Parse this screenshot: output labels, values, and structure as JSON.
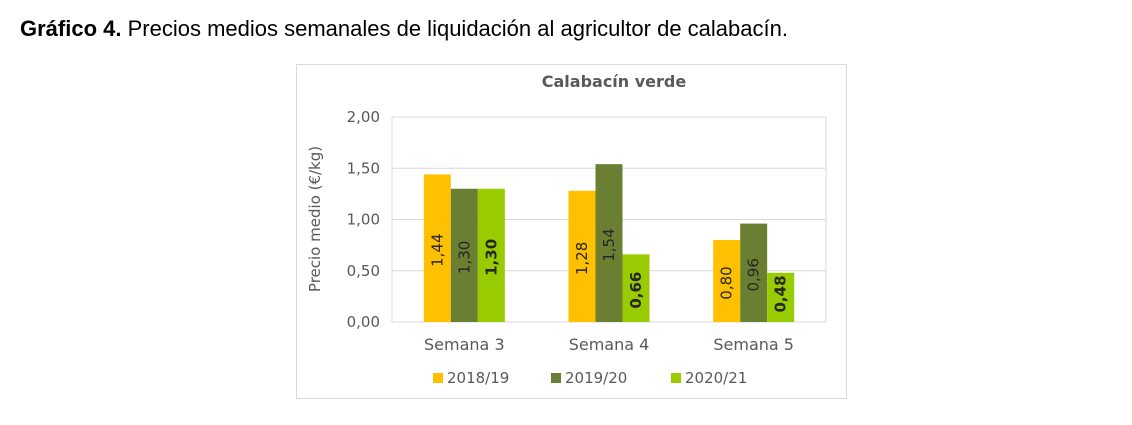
{
  "caption": {
    "bold": "Gráfico 4.",
    "text": " Precios medios semanales de liquidación al agricultor de calabacín."
  },
  "chart_data": {
    "type": "bar",
    "title": "Calabacín verde",
    "ylabel": "Precio medio (€/kg)",
    "xlabel": "",
    "ylim": [
      0,
      2
    ],
    "yticks": [
      "0,00",
      "0,50",
      "1,00",
      "1,50",
      "2,00"
    ],
    "ytick_values": [
      0,
      0.5,
      1,
      1.5,
      2
    ],
    "categories": [
      "Semana 3",
      "Semana 4",
      "Semana 5"
    ],
    "series": [
      {
        "name": "2018/19",
        "color": "#ffc000",
        "values": [
          1.44,
          1.28,
          0.8
        ],
        "labels": [
          "1,44",
          "1,28",
          "0,80"
        ]
      },
      {
        "name": "2019/20",
        "color": "#6b7f33",
        "values": [
          1.3,
          1.54,
          0.96
        ],
        "labels": [
          "1,30",
          "1,54",
          "0,96"
        ]
      },
      {
        "name": "2020/21",
        "color": "#99cc00",
        "values": [
          1.3,
          0.66,
          0.48
        ],
        "labels": [
          "1,30",
          "0,66",
          "0,48"
        ]
      }
    ],
    "grid": true,
    "legend": "bottom"
  }
}
